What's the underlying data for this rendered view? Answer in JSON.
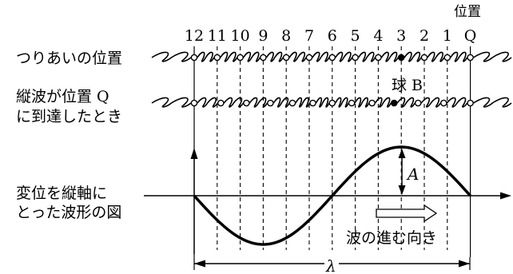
{
  "top_label": "位置",
  "position_numbers": [
    "12",
    "11",
    "10",
    "9",
    "8",
    "7",
    "6",
    "5",
    "4",
    "3",
    "2",
    "1",
    "Q"
  ],
  "rows": {
    "equilibrium_label": "つりあいの位置",
    "arrived_label_line1": "縦波が位置 Q",
    "arrived_label_line2": "に到達したとき"
  },
  "ball_label": "球 B",
  "graph": {
    "label_line1": "変位を縦軸に",
    "label_line2": "とった波形の図",
    "amplitude_label": "A",
    "direction_label": "波の進む向き",
    "wavelength_label": "λ"
  }
}
